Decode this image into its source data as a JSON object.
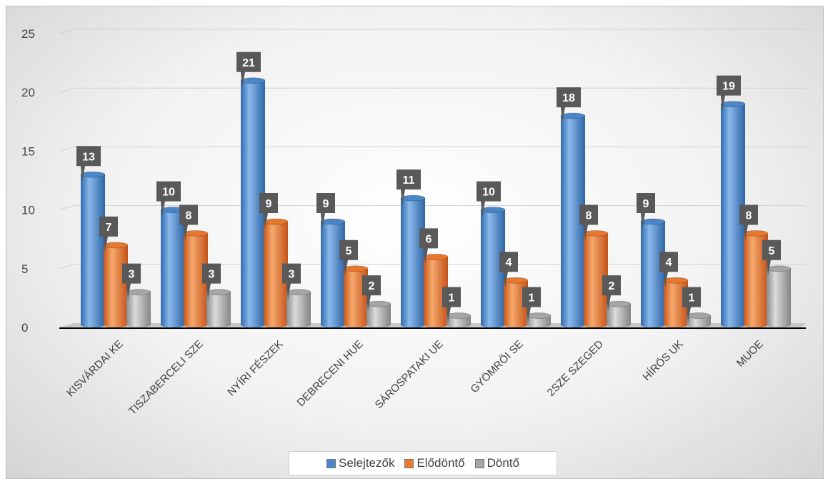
{
  "chart_data": {
    "type": "bar",
    "title": "",
    "xlabel": "",
    "ylabel": "",
    "ylim": [
      0,
      25
    ],
    "yticks": [
      0,
      5,
      10,
      15,
      20,
      25
    ],
    "grid": true,
    "legend_position": "bottom",
    "categories": [
      "KISVÁRDAI KE",
      "TISZABERCELI SZE",
      "NYÍRI FÉSZEK",
      "DEBRECENI HUE",
      "SÁROSPATAKI UE",
      "GYÖMRŐI SE",
      "2SZE SZEGED",
      "HÍRÖS UK",
      "MUOE"
    ],
    "series": [
      {
        "name": "Selejtezők",
        "color": "#4a86c8",
        "values": [
          13,
          10,
          21,
          9,
          11,
          10,
          18,
          9,
          19
        ]
      },
      {
        "name": "Elődöntő",
        "color": "#e8762d",
        "values": [
          7,
          8,
          9,
          5,
          6,
          4,
          8,
          4,
          8
        ]
      },
      {
        "name": "Döntő",
        "color": "#a5a5a5",
        "values": [
          3,
          3,
          3,
          2,
          1,
          1,
          2,
          1,
          5
        ]
      }
    ]
  }
}
